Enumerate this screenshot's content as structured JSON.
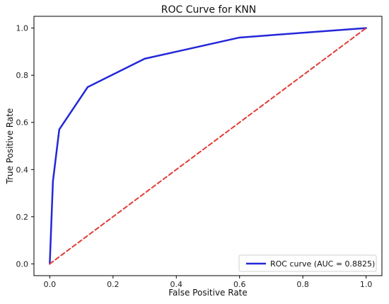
{
  "chart_data": {
    "type": "line",
    "title": "ROC Curve for KNN",
    "xlabel": "False Positive Rate",
    "ylabel": "True Positive Rate",
    "xlim": [
      -0.05,
      1.05
    ],
    "ylim": [
      -0.05,
      1.05
    ],
    "x_ticks": [
      "0.0",
      "0.2",
      "0.4",
      "0.6",
      "0.8",
      "1.0"
    ],
    "y_ticks": [
      "0.0",
      "0.2",
      "0.4",
      "0.6",
      "0.8",
      "1.0"
    ],
    "grid": false,
    "legend_position": "lower-right",
    "series": [
      {
        "name": "ROC curve (AUC = 0.8825)",
        "color": "#2327d8",
        "style": "solid",
        "x": [
          0.0,
          0.01,
          0.03,
          0.12,
          0.3,
          0.6,
          1.0
        ],
        "y": [
          0.0,
          0.35,
          0.57,
          0.75,
          0.87,
          0.96,
          1.0
        ]
      },
      {
        "color": "#e23b35",
        "style": "dashed",
        "x": [
          0.0,
          1.0
        ],
        "y": [
          0.0,
          1.0
        ]
      }
    ]
  }
}
